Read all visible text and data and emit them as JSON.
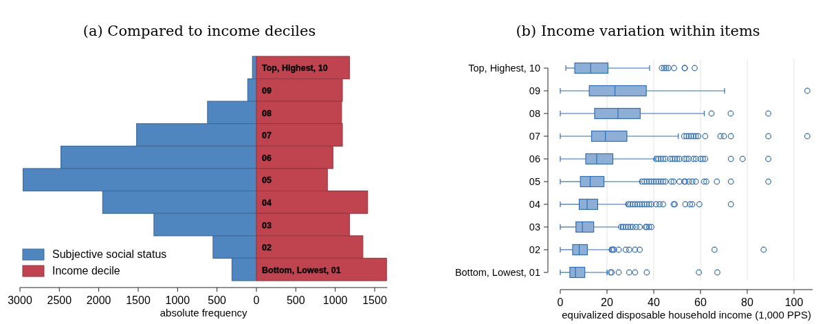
{
  "chart_data": [
    {
      "type": "bar",
      "orientation": "horizontal",
      "title": "(a) Compared to income deciles",
      "xlabel": "absolute frequency",
      "categories": [
        "Top, Highest, 10",
        "09",
        "08",
        "07",
        "06",
        "05",
        "04",
        "03",
        "02",
        "Bottom, Lowest, 01"
      ],
      "series": [
        {
          "name": "Subjective social status",
          "color": "#4f86c0",
          "values": [
            -50,
            -110,
            -620,
            -1520,
            -2480,
            -2960,
            -1950,
            -1300,
            -550,
            -310
          ]
        },
        {
          "name": "Income decile",
          "color": "#c0444f",
          "values": [
            1180,
            1090,
            1080,
            1090,
            970,
            900,
            1410,
            1180,
            1350,
            1650
          ]
        }
      ],
      "stacked": true,
      "xlim": [
        -3000,
        1660
      ],
      "xticks": [
        {
          "value": -3000,
          "label": "3000"
        },
        {
          "value": -2500,
          "label": "2500"
        },
        {
          "value": -2000,
          "label": "2000"
        },
        {
          "value": -1500,
          "label": "1500"
        },
        {
          "value": -1000,
          "label": "1000"
        },
        {
          "value": -500,
          "label": "500"
        },
        0,
        500,
        1000,
        1500
      ],
      "legend": "bottom left"
    },
    {
      "type": "box",
      "orientation": "horizontal",
      "title": "(b) Income variation within items",
      "xlabel": "equivalized disposable household income (1,000 PPS)",
      "categories": [
        "Top, Highest, 10",
        "09",
        "08",
        "07",
        "06",
        "05",
        "04",
        "03",
        "02",
        "Bottom, Lowest, 01"
      ],
      "color": "#2f6db5",
      "boxes": [
        {
          "low": 2.4,
          "q1": 6.2,
          "median": 13,
          "q3": 20.4,
          "high": 38.2,
          "outliers": [
            43.5,
            44.5,
            45.3,
            46.3,
            48.7,
            53.2,
            53.3,
            57.5
          ]
        },
        {
          "low": 0,
          "q1": 12.4,
          "median": 23.4,
          "q3": 36.8,
          "high": 70.3,
          "outliers": [
            105.7
          ]
        },
        {
          "low": 0,
          "q1": 14.7,
          "median": 24.7,
          "q3": 34.2,
          "high": 61.6,
          "outliers": [
            64.7,
            72.9,
            89
          ]
        },
        {
          "low": 0,
          "q1": 13.4,
          "median": 19.3,
          "q3": 28.5,
          "high": 50.5,
          "outliers": [
            53,
            54,
            55,
            56,
            57,
            58,
            59,
            62,
            68.5,
            70,
            73,
            89,
            105.7
          ]
        },
        {
          "low": 0,
          "q1": 10.9,
          "median": 15.6,
          "q3": 22.5,
          "high": 40.5,
          "outliers": [
            41,
            42,
            43,
            44,
            45,
            47,
            48,
            49,
            50,
            51,
            53,
            54,
            55,
            57,
            58,
            60,
            61,
            62,
            73,
            78,
            89
          ]
        },
        {
          "low": 0,
          "q1": 8.6,
          "median": 12.8,
          "q3": 18.7,
          "high": 34.2,
          "outliers": [
            35,
            36,
            37,
            38,
            39,
            40,
            41,
            42,
            43,
            44,
            45,
            47.5,
            48.5,
            51,
            53,
            53.5,
            55,
            56.5,
            58,
            61.5,
            62.5,
            67,
            73,
            89
          ]
        },
        {
          "low": 0,
          "q1": 8.1,
          "median": 11.5,
          "q3": 16,
          "high": 28.4,
          "outliers": [
            29,
            30,
            31,
            32,
            33,
            34,
            35,
            36,
            37,
            38,
            39,
            41,
            42.5,
            44,
            48.5,
            49,
            53.5,
            55.5,
            56.5,
            59.5,
            73
          ]
        },
        {
          "low": 0,
          "q1": 6.7,
          "median": 9.5,
          "q3": 14.3,
          "high": 25.8,
          "outliers": [
            26,
            27,
            28,
            29,
            30,
            31,
            32.5,
            34,
            36.5,
            37,
            38,
            39
          ]
        },
        {
          "low": 0,
          "q1": 5.3,
          "median": 8.1,
          "q3": 11.6,
          "high": 21.3,
          "outliers": [
            22,
            22.5,
            23,
            25,
            28,
            29.5,
            32,
            34,
            66,
            87
          ]
        },
        {
          "low": 0,
          "q1": 4.1,
          "median": 6.5,
          "q3": 10.5,
          "high": 20,
          "outliers": [
            21.5,
            22,
            25,
            29.5,
            32,
            37,
            59.3,
            67.2
          ]
        }
      ],
      "xlim": [
        0,
        108
      ],
      "xticks": [
        0,
        20,
        40,
        60,
        80,
        100
      ],
      "grid": "x"
    }
  ]
}
